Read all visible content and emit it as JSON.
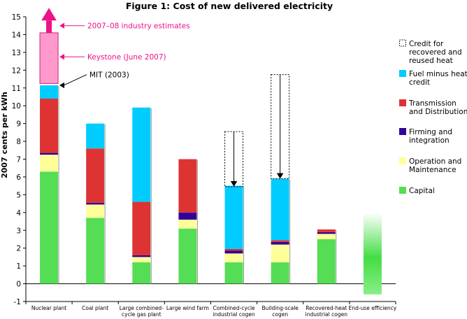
{
  "chart_data": {
    "type": "bar",
    "stacked": true,
    "title": "Figure 1: Cost of new delivered electricity",
    "ylabel": "2007 cents per kWh",
    "ylim": [
      -1,
      15
    ],
    "yticks": [
      -1,
      0,
      1,
      2,
      3,
      4,
      5,
      6,
      7,
      8,
      9,
      10,
      11,
      12,
      13,
      14,
      15
    ],
    "grid": false,
    "legend_position": "right",
    "categories": [
      [
        "Nuclear plant"
      ],
      [
        "Coal plant"
      ],
      [
        "Large combined-",
        "cycle gas plant"
      ],
      [
        "Large wind farm"
      ],
      [
        "Combined-cycle",
        "industrial cogen"
      ],
      [
        "Building-scale",
        "cogen"
      ],
      [
        "Recovered-heat",
        "industrial cogen"
      ],
      [
        "End-use efficiency"
      ]
    ],
    "series": [
      {
        "name": "Capital",
        "color": "#55dd55",
        "values": [
          6.3,
          3.7,
          1.2,
          3.1,
          1.2,
          1.2,
          2.5,
          0
        ]
      },
      {
        "name": "Operation and Maintenance",
        "color": "#ffff99",
        "values": [
          0.95,
          0.75,
          0.3,
          0.5,
          0.5,
          1.0,
          0.3,
          0
        ]
      },
      {
        "name": "Firming and integration",
        "color": "#330099",
        "values": [
          0.1,
          0.1,
          0.1,
          0.4,
          0.15,
          0.15,
          0.1,
          0
        ]
      },
      {
        "name": "Transmission and Distribution",
        "color": "#dd3333",
        "values": [
          3.05,
          3.05,
          3.0,
          3.0,
          0.1,
          0.1,
          0.15,
          0
        ]
      },
      {
        "name": "Fuel minus heat credit",
        "color": "#00ccff",
        "values": [
          0.75,
          1.4,
          5.3,
          0,
          3.55,
          3.45,
          0,
          0
        ]
      }
    ],
    "credit_for_recovered_and_reused_heat": {
      "name": "Credit for recovered and reused heat",
      "categories": [
        "Combined-cycle industrial cogen",
        "Building-scale cogen"
      ],
      "from": [
        8.55,
        11.75
      ],
      "to": [
        5.45,
        5.9
      ]
    },
    "end_use_efficiency_range": [
      -0.6,
      4.0
    ],
    "nuclear_estimate_range": {
      "from": 11.25,
      "to": 14.1,
      "color": "#ff99cc",
      "arrow_top": 15.5
    },
    "annotations": [
      {
        "text": "2007–08 industry estimates",
        "value": 14.5,
        "color": "#ee1188"
      },
      {
        "text": "Keystone (June 2007)",
        "value": 12.75,
        "color": "#ee1188"
      },
      {
        "text": "MIT (2003)",
        "value": 11.15,
        "color": "#000000"
      }
    ],
    "legend": [
      {
        "label": [
          "Credit for",
          "recovered and",
          "reused heat"
        ],
        "style": "dotted"
      },
      {
        "label": [
          "Fuel minus heat",
          "credit"
        ],
        "color": "#00ccff"
      },
      {
        "label": [
          "Transmission",
          "and Distribution"
        ],
        "color": "#dd3333"
      },
      {
        "label": [
          "Firming and",
          "integration"
        ],
        "color": "#330099"
      },
      {
        "label": [
          "Operation and",
          "Maintenance"
        ],
        "color": "#ffff99"
      },
      {
        "label": [
          "Capital"
        ],
        "color": "#55dd55"
      }
    ]
  }
}
